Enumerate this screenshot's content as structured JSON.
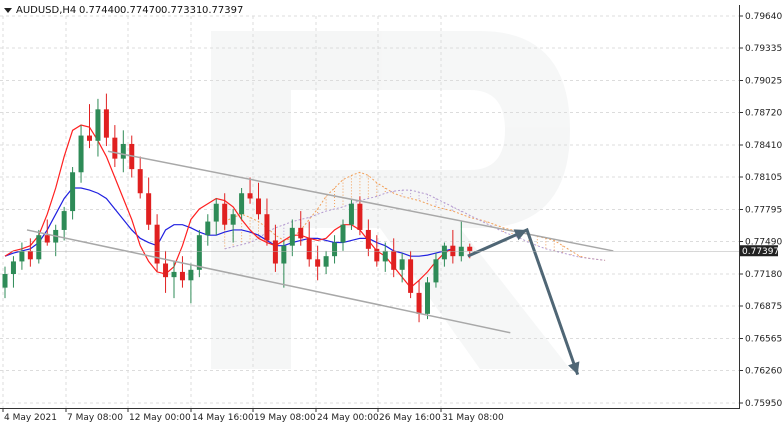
{
  "chart_data": {
    "type": "candlestick",
    "symbol": "AUDUSD,H4",
    "ohlc_header": [
      "0.77440",
      "0.77470",
      "0.77331",
      "0.77397"
    ],
    "current_price": "0.77397",
    "ylim": [
      0.7595,
      0.7964
    ],
    "y_ticks": [
      "0.79640",
      "0.79335",
      "0.79025",
      "0.78720",
      "0.78410",
      "0.78105",
      "0.77795",
      "0.77490",
      "0.77180",
      "0.76875",
      "0.76565",
      "0.76260",
      "0.75950"
    ],
    "x_ticks": [
      "4 May 2021",
      "7 May 08:00",
      "12 May 00:00",
      "14 May 16:00",
      "19 May 08:00",
      "24 May 00:00",
      "26 May 16:00",
      "31 May 08:00"
    ],
    "colors": {
      "bull": "#2e8b57",
      "bear": "#e02020",
      "tenkan": "#ff2020",
      "kijun": "#2020e0",
      "span_a": "#f2a05a",
      "span_b": "#b49ad0",
      "channel": "#a8a8a8",
      "arrow": "#4f6675",
      "grid": "#dcdcdc"
    },
    "candles": [
      [
        0.7705,
        0.7725,
        0.7695,
        0.7718
      ],
      [
        0.7718,
        0.7735,
        0.7705,
        0.773
      ],
      [
        0.773,
        0.7748,
        0.7722,
        0.774
      ],
      [
        0.774,
        0.7752,
        0.7725,
        0.7732
      ],
      [
        0.7732,
        0.776,
        0.7728,
        0.7755
      ],
      [
        0.7755,
        0.777,
        0.7745,
        0.7748
      ],
      [
        0.7748,
        0.7765,
        0.7735,
        0.776
      ],
      [
        0.776,
        0.7782,
        0.775,
        0.7778
      ],
      [
        0.7778,
        0.782,
        0.777,
        0.7815
      ],
      [
        0.7815,
        0.786,
        0.7805,
        0.785
      ],
      [
        0.785,
        0.788,
        0.7838,
        0.7845
      ],
      [
        0.7845,
        0.7885,
        0.783,
        0.7875
      ],
      [
        0.7875,
        0.789,
        0.784,
        0.7848
      ],
      [
        0.7848,
        0.786,
        0.782,
        0.7828
      ],
      [
        0.7828,
        0.7855,
        0.7815,
        0.7842
      ],
      [
        0.7842,
        0.785,
        0.781,
        0.7818
      ],
      [
        0.7818,
        0.783,
        0.779,
        0.7795
      ],
      [
        0.7795,
        0.781,
        0.776,
        0.7765
      ],
      [
        0.7765,
        0.7775,
        0.772,
        0.7728
      ],
      [
        0.7728,
        0.774,
        0.77,
        0.7715
      ],
      [
        0.7715,
        0.773,
        0.7695,
        0.772
      ],
      [
        0.772,
        0.7735,
        0.7705,
        0.7712
      ],
      [
        0.7712,
        0.7728,
        0.769,
        0.7722
      ],
      [
        0.7722,
        0.776,
        0.7715,
        0.7755
      ],
      [
        0.7755,
        0.7775,
        0.7745,
        0.7768
      ],
      [
        0.7768,
        0.779,
        0.7755,
        0.7785
      ],
      [
        0.7785,
        0.7795,
        0.776,
        0.7765
      ],
      [
        0.7765,
        0.778,
        0.7748,
        0.7775
      ],
      [
        0.7775,
        0.78,
        0.777,
        0.7795
      ],
      [
        0.7795,
        0.781,
        0.7785,
        0.779
      ],
      [
        0.779,
        0.7805,
        0.777,
        0.7775
      ],
      [
        0.7775,
        0.779,
        0.7745,
        0.775
      ],
      [
        0.775,
        0.7765,
        0.772,
        0.7728
      ],
      [
        0.7728,
        0.775,
        0.7705,
        0.7745
      ],
      [
        0.7745,
        0.777,
        0.7735,
        0.7762
      ],
      [
        0.7762,
        0.7778,
        0.7745,
        0.7752
      ],
      [
        0.7752,
        0.7768,
        0.7725,
        0.7732
      ],
      [
        0.7732,
        0.7745,
        0.7712,
        0.7725
      ],
      [
        0.7725,
        0.774,
        0.7718,
        0.7735
      ],
      [
        0.7735,
        0.7755,
        0.7728,
        0.7748
      ],
      [
        0.7748,
        0.777,
        0.774,
        0.7765
      ],
      [
        0.7765,
        0.779,
        0.776,
        0.7785
      ],
      [
        0.7785,
        0.7792,
        0.7755,
        0.776
      ],
      [
        0.776,
        0.777,
        0.7735,
        0.7742
      ],
      [
        0.7742,
        0.7755,
        0.7725,
        0.773
      ],
      [
        0.773,
        0.7748,
        0.772,
        0.774
      ],
      [
        0.774,
        0.7752,
        0.7715,
        0.7722
      ],
      [
        0.7722,
        0.7738,
        0.771,
        0.7732
      ],
      [
        0.7732,
        0.774,
        0.7695,
        0.77
      ],
      [
        0.77,
        0.7712,
        0.7672,
        0.768
      ],
      [
        0.768,
        0.7715,
        0.7675,
        0.771
      ],
      [
        0.771,
        0.7738,
        0.7705,
        0.7732
      ],
      [
        0.7732,
        0.7748,
        0.7725,
        0.7745
      ],
      [
        0.7745,
        0.776,
        0.7728,
        0.7735
      ],
      [
        0.7735,
        0.7768,
        0.773,
        0.7744
      ],
      [
        0.7744,
        0.7747,
        0.7733,
        0.774
      ]
    ],
    "tenkan": [
      0.7735,
      0.774,
      0.7742,
      0.7745,
      0.7755,
      0.7775,
      0.78,
      0.783,
      0.7855,
      0.786,
      0.7858,
      0.7845,
      0.783,
      0.781,
      0.779,
      0.777,
      0.7745,
      0.773,
      0.772,
      0.7718,
      0.7725,
      0.7745,
      0.777,
      0.778,
      0.7785,
      0.779,
      0.7788,
      0.7782,
      0.777,
      0.776,
      0.7752,
      0.7748,
      0.7745,
      0.775,
      0.7755,
      0.7755,
      0.7752,
      0.775,
      0.7752,
      0.776,
      0.7765,
      0.7765,
      0.776,
      0.775,
      0.774,
      0.7735,
      0.7725,
      0.7715,
      0.7705,
      0.7712,
      0.772,
      0.773,
      0.7738,
      0.7742
    ],
    "kijun": [
      0.7735,
      0.7738,
      0.774,
      0.7742,
      0.7748,
      0.776,
      0.7775,
      0.779,
      0.78,
      0.78,
      0.7798,
      0.7795,
      0.779,
      0.778,
      0.777,
      0.776,
      0.7752,
      0.7748,
      0.7745,
      0.776,
      0.7765,
      0.7765,
      0.7762,
      0.7758,
      0.7755,
      0.7755,
      0.7758,
      0.776,
      0.776,
      0.7758,
      0.7755,
      0.775,
      0.7745,
      0.7745,
      0.7748,
      0.775,
      0.7752,
      0.7752,
      0.775,
      0.7748,
      0.7748,
      0.775,
      0.7752,
      0.7752,
      0.7748,
      0.7745,
      0.774,
      0.7738,
      0.7735,
      0.7735,
      0.7736,
      0.7738,
      0.774,
      0.7742
    ],
    "span_a": [
      0.7768,
      0.7772,
      0.7775,
      0.7772,
      0.7768,
      0.7762,
      0.7755,
      0.775,
      0.7752,
      0.776,
      0.777,
      0.778,
      0.7792,
      0.78,
      0.7808,
      0.7812,
      0.7815,
      0.7812,
      0.7805,
      0.78,
      0.7795,
      0.7792,
      0.779,
      0.7788,
      0.7785,
      0.7782,
      0.778,
      0.7778,
      0.7775,
      0.7772,
      0.777,
      0.7768,
      0.7765,
      0.7762,
      0.776,
      0.7758,
      0.7756,
      0.7754,
      0.7752,
      0.775,
      0.7745,
      0.774,
      0.7735,
      0.7733,
      0.7732,
      0.7731
    ],
    "span_b": [
      0.7742,
      0.7744,
      0.7746,
      0.7748,
      0.7752,
      0.7758,
      0.7762,
      0.7765,
      0.7768,
      0.777,
      0.7772,
      0.7775,
      0.7778,
      0.778,
      0.7782,
      0.7785,
      0.7788,
      0.779,
      0.7792,
      0.7795,
      0.7797,
      0.7798,
      0.7798,
      0.7796,
      0.7794,
      0.779,
      0.7786,
      0.7782,
      0.7778,
      0.7774,
      0.777,
      0.7766,
      0.7762,
      0.7758,
      0.7755,
      0.7752,
      0.7748,
      0.7745,
      0.7742,
      0.774,
      0.7738,
      0.7736,
      0.7734,
      0.7733,
      0.7732,
      0.7731
    ],
    "channel_upper": [
      [
        6,
        0.7835
      ],
      [
        80,
        0.774
      ]
    ],
    "channel_lower": [
      [
        6,
        0.776
      ],
      [
        80,
        0.7662
      ]
    ],
    "arrow_path": [
      [
        53,
        0.7735
      ],
      [
        60,
        0.776
      ],
      [
        66,
        0.7622
      ]
    ]
  }
}
